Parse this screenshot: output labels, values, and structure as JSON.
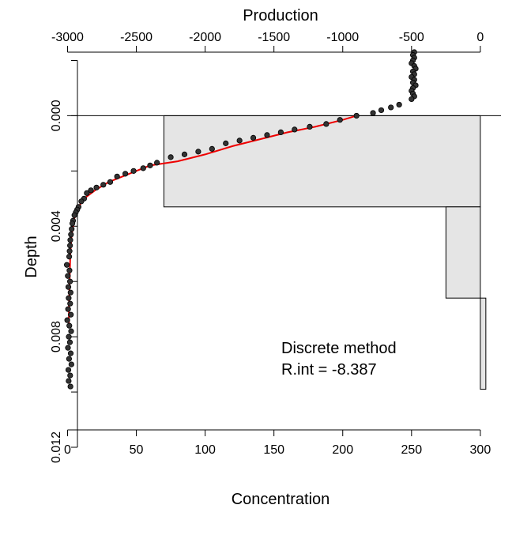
{
  "chart_data": {
    "type": "scatter",
    "xlabel": "Concentration",
    "ylabel": "Depth",
    "x2label": "Production",
    "xlim": [
      -2,
      315
    ],
    "ylim": [
      0.012,
      -0.0023
    ],
    "x2lim": [
      -3000,
      0
    ],
    "x_ticks": [
      "0",
      "50",
      "100",
      "150",
      "200",
      "250",
      "300"
    ],
    "x2_ticks": [
      "-3000",
      "-2500",
      "-2000",
      "-1500",
      "-1000",
      "-500",
      "0"
    ],
    "y_ticks": [
      "0.000",
      "0.004",
      "0.008",
      "0.012"
    ],
    "zero_line": true,
    "annotations": [
      "Discrete method",
      "R.int = -8.387"
    ],
    "colors": {
      "points": "#333333",
      "fit": "#ee0000",
      "bars": "#e5e5e5",
      "axis": "#000000"
    },
    "production_bars": [
      {
        "top": 0.0,
        "bottom": 0.0033,
        "production": -2300
      },
      {
        "top": 0.0033,
        "bottom": 0.0066,
        "production": -250
      },
      {
        "top": 0.0066,
        "bottom": 0.0099,
        "production": 40
      }
    ],
    "fit": [
      {
        "x": 210,
        "y": 0.0
      },
      {
        "x": 200,
        "y": 0.00015
      },
      {
        "x": 180,
        "y": 0.0004
      },
      {
        "x": 160,
        "y": 0.0006
      },
      {
        "x": 140,
        "y": 0.00085
      },
      {
        "x": 120,
        "y": 0.0011
      },
      {
        "x": 100,
        "y": 0.0014
      },
      {
        "x": 80,
        "y": 0.00165
      },
      {
        "x": 60,
        "y": 0.0018
      },
      {
        "x": 50,
        "y": 0.002
      },
      {
        "x": 40,
        "y": 0.0022
      },
      {
        "x": 30,
        "y": 0.0024
      },
      {
        "x": 20,
        "y": 0.0027
      },
      {
        "x": 12,
        "y": 0.003
      },
      {
        "x": 8,
        "y": 0.0033
      },
      {
        "x": 5,
        "y": 0.0037
      },
      {
        "x": 3,
        "y": 0.0043
      },
      {
        "x": 2,
        "y": 0.005
      },
      {
        "x": 1.5,
        "y": 0.006
      },
      {
        "x": 1,
        "y": 0.007
      },
      {
        "x": 1,
        "y": 0.0075
      }
    ],
    "points": [
      {
        "x": 252,
        "y": -0.0023
      },
      {
        "x": 251,
        "y": -0.0022
      },
      {
        "x": 252,
        "y": -0.0021
      },
      {
        "x": 251,
        "y": -0.002
      },
      {
        "x": 250,
        "y": -0.0019
      },
      {
        "x": 252,
        "y": -0.0018
      },
      {
        "x": 253,
        "y": -0.0017
      },
      {
        "x": 251,
        "y": -0.0016
      },
      {
        "x": 252,
        "y": -0.0015
      },
      {
        "x": 250,
        "y": -0.0014
      },
      {
        "x": 252,
        "y": -0.0013
      },
      {
        "x": 251,
        "y": -0.0012
      },
      {
        "x": 253,
        "y": -0.0011
      },
      {
        "x": 251,
        "y": -0.001
      },
      {
        "x": 250,
        "y": -0.0009
      },
      {
        "x": 251,
        "y": -0.0008
      },
      {
        "x": 252,
        "y": -0.0007
      },
      {
        "x": 250,
        "y": -0.0006
      },
      {
        "x": 241,
        "y": -0.0004
      },
      {
        "x": 235,
        "y": -0.0003
      },
      {
        "x": 228,
        "y": -0.0002
      },
      {
        "x": 222,
        "y": -0.0001
      },
      {
        "x": 210,
        "y": 0.0
      },
      {
        "x": 198,
        "y": 0.00015
      },
      {
        "x": 188,
        "y": 0.0003
      },
      {
        "x": 176,
        "y": 0.0004
      },
      {
        "x": 165,
        "y": 0.0005
      },
      {
        "x": 155,
        "y": 0.0006
      },
      {
        "x": 145,
        "y": 0.0007
      },
      {
        "x": 135,
        "y": 0.0008
      },
      {
        "x": 125,
        "y": 0.0009
      },
      {
        "x": 115,
        "y": 0.001
      },
      {
        "x": 105,
        "y": 0.0012
      },
      {
        "x": 95,
        "y": 0.0013
      },
      {
        "x": 85,
        "y": 0.0014
      },
      {
        "x": 75,
        "y": 0.0015
      },
      {
        "x": 65,
        "y": 0.0017
      },
      {
        "x": 60,
        "y": 0.0018
      },
      {
        "x": 55,
        "y": 0.0019
      },
      {
        "x": 48,
        "y": 0.002
      },
      {
        "x": 42,
        "y": 0.0021
      },
      {
        "x": 36,
        "y": 0.0022
      },
      {
        "x": 31,
        "y": 0.0024
      },
      {
        "x": 26,
        "y": 0.0025
      },
      {
        "x": 21,
        "y": 0.0026
      },
      {
        "x": 17,
        "y": 0.0027
      },
      {
        "x": 14,
        "y": 0.0028
      },
      {
        "x": 12,
        "y": 0.003
      },
      {
        "x": 10,
        "y": 0.0031
      },
      {
        "x": 8,
        "y": 0.0033
      },
      {
        "x": 7,
        "y": 0.0034
      },
      {
        "x": 6,
        "y": 0.0035
      },
      {
        "x": 5,
        "y": 0.0036
      },
      {
        "x": 4,
        "y": 0.0038
      },
      {
        "x": 3.5,
        "y": 0.0039
      },
      {
        "x": 3,
        "y": 0.0041
      },
      {
        "x": 2.5,
        "y": 0.0043
      },
      {
        "x": 2,
        "y": 0.0045
      },
      {
        "x": 1.8,
        "y": 0.0047
      },
      {
        "x": 1.5,
        "y": 0.0049
      },
      {
        "x": 1.2,
        "y": 0.0051
      },
      {
        "x": -0.5,
        "y": 0.0054
      },
      {
        "x": 1.4,
        "y": 0.0056
      },
      {
        "x": 0.2,
        "y": 0.0058
      },
      {
        "x": 1.8,
        "y": 0.006
      },
      {
        "x": 0.6,
        "y": 0.0062
      },
      {
        "x": 2.2,
        "y": 0.0064
      },
      {
        "x": 0.8,
        "y": 0.0066
      },
      {
        "x": 1.9,
        "y": 0.0068
      },
      {
        "x": 0.4,
        "y": 0.007
      },
      {
        "x": 2.4,
        "y": 0.0072
      },
      {
        "x": -0.2,
        "y": 0.0074
      },
      {
        "x": 1.3,
        "y": 0.0076
      },
      {
        "x": 2.6,
        "y": 0.0078
      },
      {
        "x": 0.9,
        "y": 0.008
      },
      {
        "x": 1.7,
        "y": 0.0082
      },
      {
        "x": 0.3,
        "y": 0.0084
      },
      {
        "x": 2.3,
        "y": 0.0086
      },
      {
        "x": 1.1,
        "y": 0.0088
      },
      {
        "x": 2.8,
        "y": 0.009
      },
      {
        "x": 0.6,
        "y": 0.0092
      },
      {
        "x": 1.9,
        "y": 0.0094
      },
      {
        "x": 0.8,
        "y": 0.0096
      },
      {
        "x": 2.1,
        "y": 0.0098
      }
    ]
  }
}
